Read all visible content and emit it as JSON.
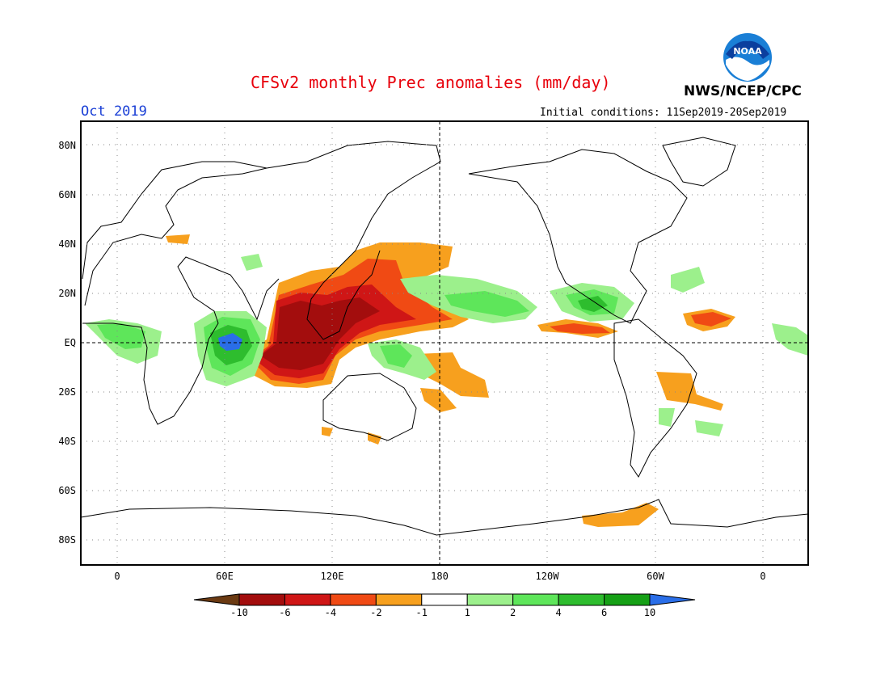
{
  "header": {
    "title": "CFSv2 monthly Prec anomalies (mm/day)",
    "month": "Oct 2019",
    "initial_conditions": "Initial conditions: 11Sep2019-20Sep2019",
    "agency": "NWS/NCEP/CPC",
    "logo_text": "NOAA"
  },
  "axes": {
    "lat_labels": [
      "80N",
      "60N",
      "40N",
      "20N",
      "EQ",
      "20S",
      "40S",
      "60S",
      "80S"
    ],
    "lon_labels": [
      "0",
      "60E",
      "120E",
      "180",
      "120W",
      "60W",
      "0"
    ]
  },
  "colorbar": {
    "labels": [
      "-10",
      "-6",
      "-4",
      "-2",
      "-1",
      "1",
      "2",
      "4",
      "6",
      "10"
    ],
    "colors": [
      "#6b3a12",
      "#a30d0d",
      "#cf1616",
      "#f04a14",
      "#f7a01e",
      "#ffffff",
      "#9cf08c",
      "#5ee65a",
      "#2ebd2e",
      "#16a016",
      "#2a6ee8"
    ]
  },
  "colors": {
    "dry_extreme": "#a30d0d",
    "dry_strong": "#cf1616",
    "dry_mod": "#f04a14",
    "dry_light": "#f7a01e",
    "wet_light": "#9cf08c",
    "wet_mod": "#5ee65a",
    "wet_strong": "#2ebd2e",
    "wet_extreme": "#16a016",
    "wet_max": "#2a6ee8"
  }
}
